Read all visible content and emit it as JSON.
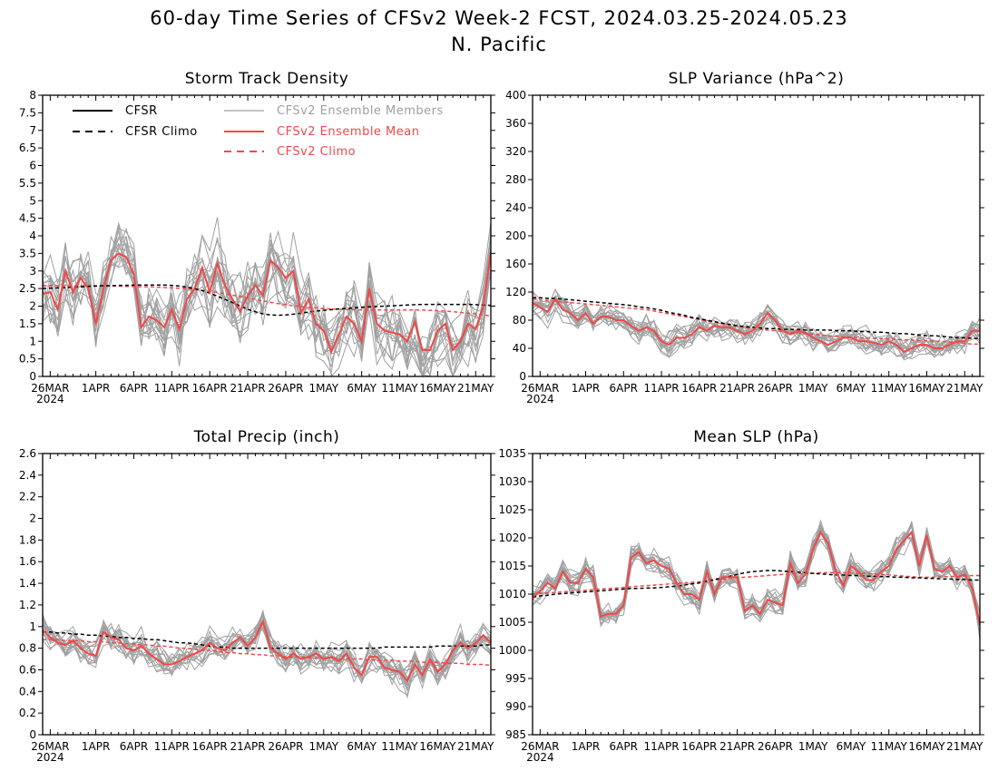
{
  "title": {
    "line1": "60-day Time Series of CFSv2 Week-2 FCST, 2024.03.25-2024.05.23",
    "line2": "N. Pacific"
  },
  "colors": {
    "cfsr": "#000000",
    "ensemble_members": "#a0a0a0",
    "ensemble_mean": "#f04848",
    "cfsv2_climo": "#f04848"
  },
  "legend": [
    {
      "label": "CFSR",
      "style": "solid",
      "color": "#000000"
    },
    {
      "label": "CFSR Climo",
      "style": "dashed",
      "color": "#000000"
    },
    {
      "label": "CFSv2 Ensemble Members",
      "style": "solid",
      "color": "#a0a0a0"
    },
    {
      "label": "CFSv2 Ensemble Mean",
      "style": "solid",
      "color": "#f04848"
    },
    {
      "label": "CFSv2 Climo",
      "style": "dashed",
      "color": "#f04848"
    }
  ],
  "x_axis": {
    "start_date": "2024-03-25",
    "n_days": 60,
    "tick_labels": [
      "26MAR",
      "1APR",
      "6APR",
      "11APR",
      "16APR",
      "21APR",
      "26APR",
      "1MAY",
      "6MAY",
      "11MAY",
      "16MAY",
      "21MAY"
    ],
    "year_label": "2024"
  },
  "chart_data": [
    {
      "type": "line",
      "title": "Storm Track Density",
      "ylim": [
        0,
        8
      ],
      "ytick_labels": [
        "0",
        "0.5",
        "1",
        "1.5",
        "2",
        "2.5",
        "3",
        "3.5",
        "4",
        "4.5",
        "5",
        "5.5",
        "6",
        "6.5",
        "7",
        "7.5",
        "8"
      ],
      "series": [
        {
          "name": "CFSv2 Ensemble Mean",
          "values": [
            2.35,
            2.4,
            1.9,
            3.0,
            2.4,
            2.8,
            2.5,
            1.5,
            2.5,
            3.3,
            3.5,
            3.4,
            2.9,
            1.4,
            1.7,
            1.6,
            1.4,
            1.9,
            1.35,
            2.2,
            2.5,
            3.1,
            2.4,
            3.2,
            2.6,
            2.2,
            1.85,
            2.3,
            2.6,
            2.3,
            3.3,
            3.1,
            2.8,
            3.0,
            1.8,
            2.2,
            1.5,
            1.3,
            0.7,
            1.2,
            1.7,
            1.5,
            1.0,
            2.5,
            1.5,
            1.3,
            1.25,
            1.2,
            1.0,
            1.55,
            0.75,
            0.75,
            1.3,
            1.5,
            0.75,
            1.0,
            1.5,
            1.35,
            2.0,
            3.55
          ]
        },
        {
          "name": "CFSR Climo",
          "values": [
            2.5,
            2.51,
            2.52,
            2.53,
            2.54,
            2.55,
            2.56,
            2.57,
            2.58,
            2.58,
            2.59,
            2.59,
            2.6,
            2.6,
            2.6,
            2.6,
            2.6,
            2.59,
            2.57,
            2.54,
            2.5,
            2.44,
            2.37,
            2.28,
            2.19,
            2.1,
            2.0,
            1.91,
            1.84,
            1.78,
            1.75,
            1.74,
            1.75,
            1.77,
            1.8,
            1.83,
            1.86,
            1.88,
            1.9,
            1.92,
            1.93,
            1.95,
            1.97,
            1.98,
            1.99,
            2.0,
            2.01,
            2.02,
            2.03,
            2.04,
            2.05,
            2.05,
            2.05,
            2.05,
            2.05,
            2.05,
            2.05,
            2.04,
            2.03,
            2.02
          ]
        },
        {
          "name": "CFSv2 Climo",
          "values": [
            2.58,
            2.58,
            2.58,
            2.58,
            2.58,
            2.58,
            2.58,
            2.58,
            2.57,
            2.57,
            2.57,
            2.56,
            2.56,
            2.55,
            2.55,
            2.54,
            2.53,
            2.52,
            2.51,
            2.49,
            2.47,
            2.45,
            2.42,
            2.39,
            2.35,
            2.31,
            2.27,
            2.23,
            2.19,
            2.15,
            2.11,
            2.07,
            2.04,
            2.01,
            1.99,
            1.97,
            1.95,
            1.93,
            1.92,
            1.91,
            1.9,
            1.9,
            1.89,
            1.89,
            1.89,
            1.89,
            1.89,
            1.89,
            1.89,
            1.89,
            1.89,
            1.88,
            1.87,
            1.86,
            1.84,
            1.82,
            1.8,
            1.78,
            1.75,
            1.72
          ]
        }
      ],
      "ensemble_members": {
        "spread": 1.25,
        "upper_limit": 5.6
      }
    },
    {
      "type": "line",
      "title": "SLP Variance (hPa^2)",
      "ylim": [
        0,
        400
      ],
      "ytick_labels": [
        "0",
        "40",
        "80",
        "120",
        "160",
        "200",
        "240",
        "280",
        "320",
        "360",
        "400"
      ],
      "series": [
        {
          "name": "CFSv2 Ensemble Mean",
          "values": [
            105,
            98,
            92,
            110,
            95,
            90,
            80,
            90,
            75,
            85,
            85,
            80,
            80,
            72,
            65,
            70,
            65,
            50,
            45,
            55,
            55,
            60,
            70,
            65,
            72,
            70,
            70,
            65,
            60,
            65,
            75,
            90,
            80,
            65,
            60,
            65,
            62,
            55,
            50,
            45,
            50,
            55,
            55,
            50,
            50,
            48,
            45,
            50,
            45,
            35,
            40,
            45,
            45,
            40,
            40,
            45,
            50,
            50,
            65,
            65
          ]
        },
        {
          "name": "CFSR Climo",
          "values": [
            112,
            112,
            111,
            111,
            110,
            109,
            108,
            107,
            106,
            105,
            104,
            103,
            102,
            101,
            99,
            98,
            96,
            94,
            91,
            89,
            87,
            84,
            82,
            80,
            78,
            76,
            74,
            72,
            71,
            70,
            69,
            68,
            68,
            67,
            67,
            67,
            66,
            66,
            66,
            66,
            65,
            65,
            65,
            64,
            64,
            63,
            63,
            62,
            61,
            61,
            60,
            59,
            58,
            58,
            57,
            56,
            55,
            55,
            54,
            54
          ]
        },
        {
          "name": "CFSv2 Climo",
          "values": [
            110,
            109,
            108,
            107,
            106,
            105,
            104,
            103,
            102,
            101,
            100,
            99,
            98,
            97,
            96,
            95,
            93,
            91,
            89,
            87,
            85,
            83,
            81,
            79,
            77,
            75,
            73,
            71,
            70,
            68,
            67,
            66,
            65,
            64,
            63,
            62,
            61,
            60,
            59,
            58,
            57,
            56,
            56,
            55,
            55,
            54,
            54,
            53,
            53,
            52,
            52,
            51,
            51,
            50,
            50,
            49,
            48,
            47,
            46,
            46
          ]
        }
      ],
      "ensemble_members": {
        "spread": 22,
        "upper_limit": 170
      }
    },
    {
      "type": "line",
      "title": "Total Precip (inch)",
      "ylim": [
        0,
        2.6
      ],
      "ytick_labels": [
        "0",
        "0.2",
        "0.4",
        "0.6",
        "0.8",
        "1",
        "1.2",
        "1.4",
        "1.6",
        "1.8",
        "2",
        "2.2",
        "2.4",
        "2.6"
      ],
      "series": [
        {
          "name": "CFSv2 Ensemble Mean",
          "values": [
            0.97,
            0.9,
            0.85,
            0.83,
            0.87,
            0.8,
            0.75,
            0.73,
            0.95,
            0.9,
            0.88,
            0.8,
            0.78,
            0.82,
            0.75,
            0.7,
            0.65,
            0.65,
            0.68,
            0.72,
            0.75,
            0.78,
            0.85,
            0.8,
            0.78,
            0.85,
            0.9,
            0.82,
            0.9,
            1.05,
            0.8,
            0.75,
            0.7,
            0.75,
            0.7,
            0.72,
            0.75,
            0.7,
            0.72,
            0.68,
            0.75,
            0.62,
            0.55,
            0.72,
            0.72,
            0.62,
            0.6,
            0.58,
            0.5,
            0.65,
            0.55,
            0.7,
            0.58,
            0.65,
            0.78,
            0.85,
            0.8,
            0.85,
            0.92,
            0.85
          ]
        },
        {
          "name": "CFSR Climo",
          "values": [
            0.95,
            0.95,
            0.94,
            0.94,
            0.93,
            0.93,
            0.92,
            0.92,
            0.91,
            0.91,
            0.9,
            0.9,
            0.89,
            0.89,
            0.88,
            0.88,
            0.87,
            0.86,
            0.85,
            0.85,
            0.84,
            0.83,
            0.82,
            0.81,
            0.81,
            0.8,
            0.8,
            0.8,
            0.8,
            0.8,
            0.8,
            0.8,
            0.8,
            0.8,
            0.8,
            0.8,
            0.8,
            0.8,
            0.8,
            0.8,
            0.8,
            0.8,
            0.8,
            0.8,
            0.8,
            0.81,
            0.81,
            0.81,
            0.81,
            0.81,
            0.81,
            0.81,
            0.82,
            0.82,
            0.82,
            0.82,
            0.82,
            0.82,
            0.83,
            0.83
          ]
        },
        {
          "name": "CFSv2 Climo",
          "values": [
            0.88,
            0.88,
            0.88,
            0.87,
            0.87,
            0.87,
            0.86,
            0.86,
            0.86,
            0.85,
            0.85,
            0.84,
            0.84,
            0.83,
            0.83,
            0.82,
            0.82,
            0.81,
            0.8,
            0.8,
            0.79,
            0.78,
            0.78,
            0.77,
            0.76,
            0.76,
            0.75,
            0.75,
            0.74,
            0.74,
            0.73,
            0.73,
            0.72,
            0.72,
            0.72,
            0.71,
            0.71,
            0.71,
            0.71,
            0.7,
            0.7,
            0.7,
            0.7,
            0.69,
            0.69,
            0.69,
            0.69,
            0.68,
            0.68,
            0.68,
            0.67,
            0.67,
            0.67,
            0.66,
            0.66,
            0.66,
            0.65,
            0.65,
            0.65,
            0.64
          ]
        }
      ],
      "ensemble_members": {
        "spread": 0.17,
        "upper_limit": 1.2
      }
    },
    {
      "type": "line",
      "title": "Mean SLP (hPa)",
      "ylim": [
        985,
        1035
      ],
      "ytick_labels": [
        "985",
        "990",
        "995",
        "1000",
        "1005",
        "1010",
        "1015",
        "1020",
        "1025",
        "1030",
        "1035"
      ],
      "series": [
        {
          "name": "CFSv2 Ensemble Mean",
          "values": [
            1009.5,
            1010.5,
            1012,
            1011,
            1014,
            1012,
            1012,
            1014.5,
            1013,
            1006,
            1006.5,
            1006.5,
            1008,
            1016.5,
            1017.5,
            1015.5,
            1016,
            1015,
            1014.5,
            1012,
            1010,
            1010,
            1009,
            1014,
            1010,
            1013,
            1013,
            1013,
            1007,
            1008,
            1006.5,
            1009,
            1008.5,
            1008,
            1015.5,
            1012,
            1013.5,
            1018,
            1021,
            1019,
            1014,
            1011.5,
            1015,
            1014,
            1012.5,
            1012.5,
            1014,
            1015,
            1018,
            1019.5,
            1021,
            1015,
            1020.5,
            1014.5,
            1014,
            1015,
            1013,
            1013.5,
            1011,
            1004.5
          ]
        },
        {
          "name": "CFSR Climo",
          "values": [
            1009.5,
            1009.7,
            1009.8,
            1010,
            1010.1,
            1010.2,
            1010.3,
            1010.4,
            1010.5,
            1010.6,
            1010.7,
            1010.8,
            1010.9,
            1011,
            1011,
            1011.1,
            1011.1,
            1011.2,
            1011.3,
            1011.4,
            1011.6,
            1011.8,
            1012,
            1012.3,
            1012.6,
            1012.9,
            1013.2,
            1013.5,
            1013.8,
            1014,
            1014.1,
            1014.2,
            1014.2,
            1014.1,
            1014,
            1013.9,
            1013.8,
            1013.7,
            1013.6,
            1013.5,
            1013.4,
            1013.4,
            1013.3,
            1013.3,
            1013.2,
            1013.2,
            1013.1,
            1013.1,
            1013,
            1013,
            1012.9,
            1012.9,
            1012.8,
            1012.8,
            1012.7,
            1012.7,
            1012.6,
            1012.6,
            1012.5,
            1012.5
          ]
        },
        {
          "name": "CFSv2 Climo",
          "values": [
            1010,
            1010.1,
            1010.2,
            1010.3,
            1010.4,
            1010.5,
            1010.6,
            1010.7,
            1010.8,
            1010.9,
            1011,
            1011.1,
            1011.2,
            1011.3,
            1011.4,
            1011.5,
            1011.6,
            1011.7,
            1011.8,
            1011.9,
            1012,
            1012.1,
            1012.2,
            1012.4,
            1012.5,
            1012.6,
            1012.8,
            1012.9,
            1013,
            1013.1,
            1013.2,
            1013.3,
            1013.4,
            1013.5,
            1013.6,
            1013.6,
            1013.7,
            1013.7,
            1013.8,
            1013.8,
            1013.8,
            1013.8,
            1013.8,
            1013.7,
            1013.7,
            1013.6,
            1013.5,
            1013.4,
            1013.3,
            1013.2,
            1013.1,
            1013,
            1013,
            1013,
            1013.1,
            1013.1,
            1013.2,
            1013.2,
            1013.3,
            1013.3
          ]
        }
      ],
      "ensemble_members": {
        "spread": 2.6,
        "upper_limit": 1026
      }
    }
  ]
}
